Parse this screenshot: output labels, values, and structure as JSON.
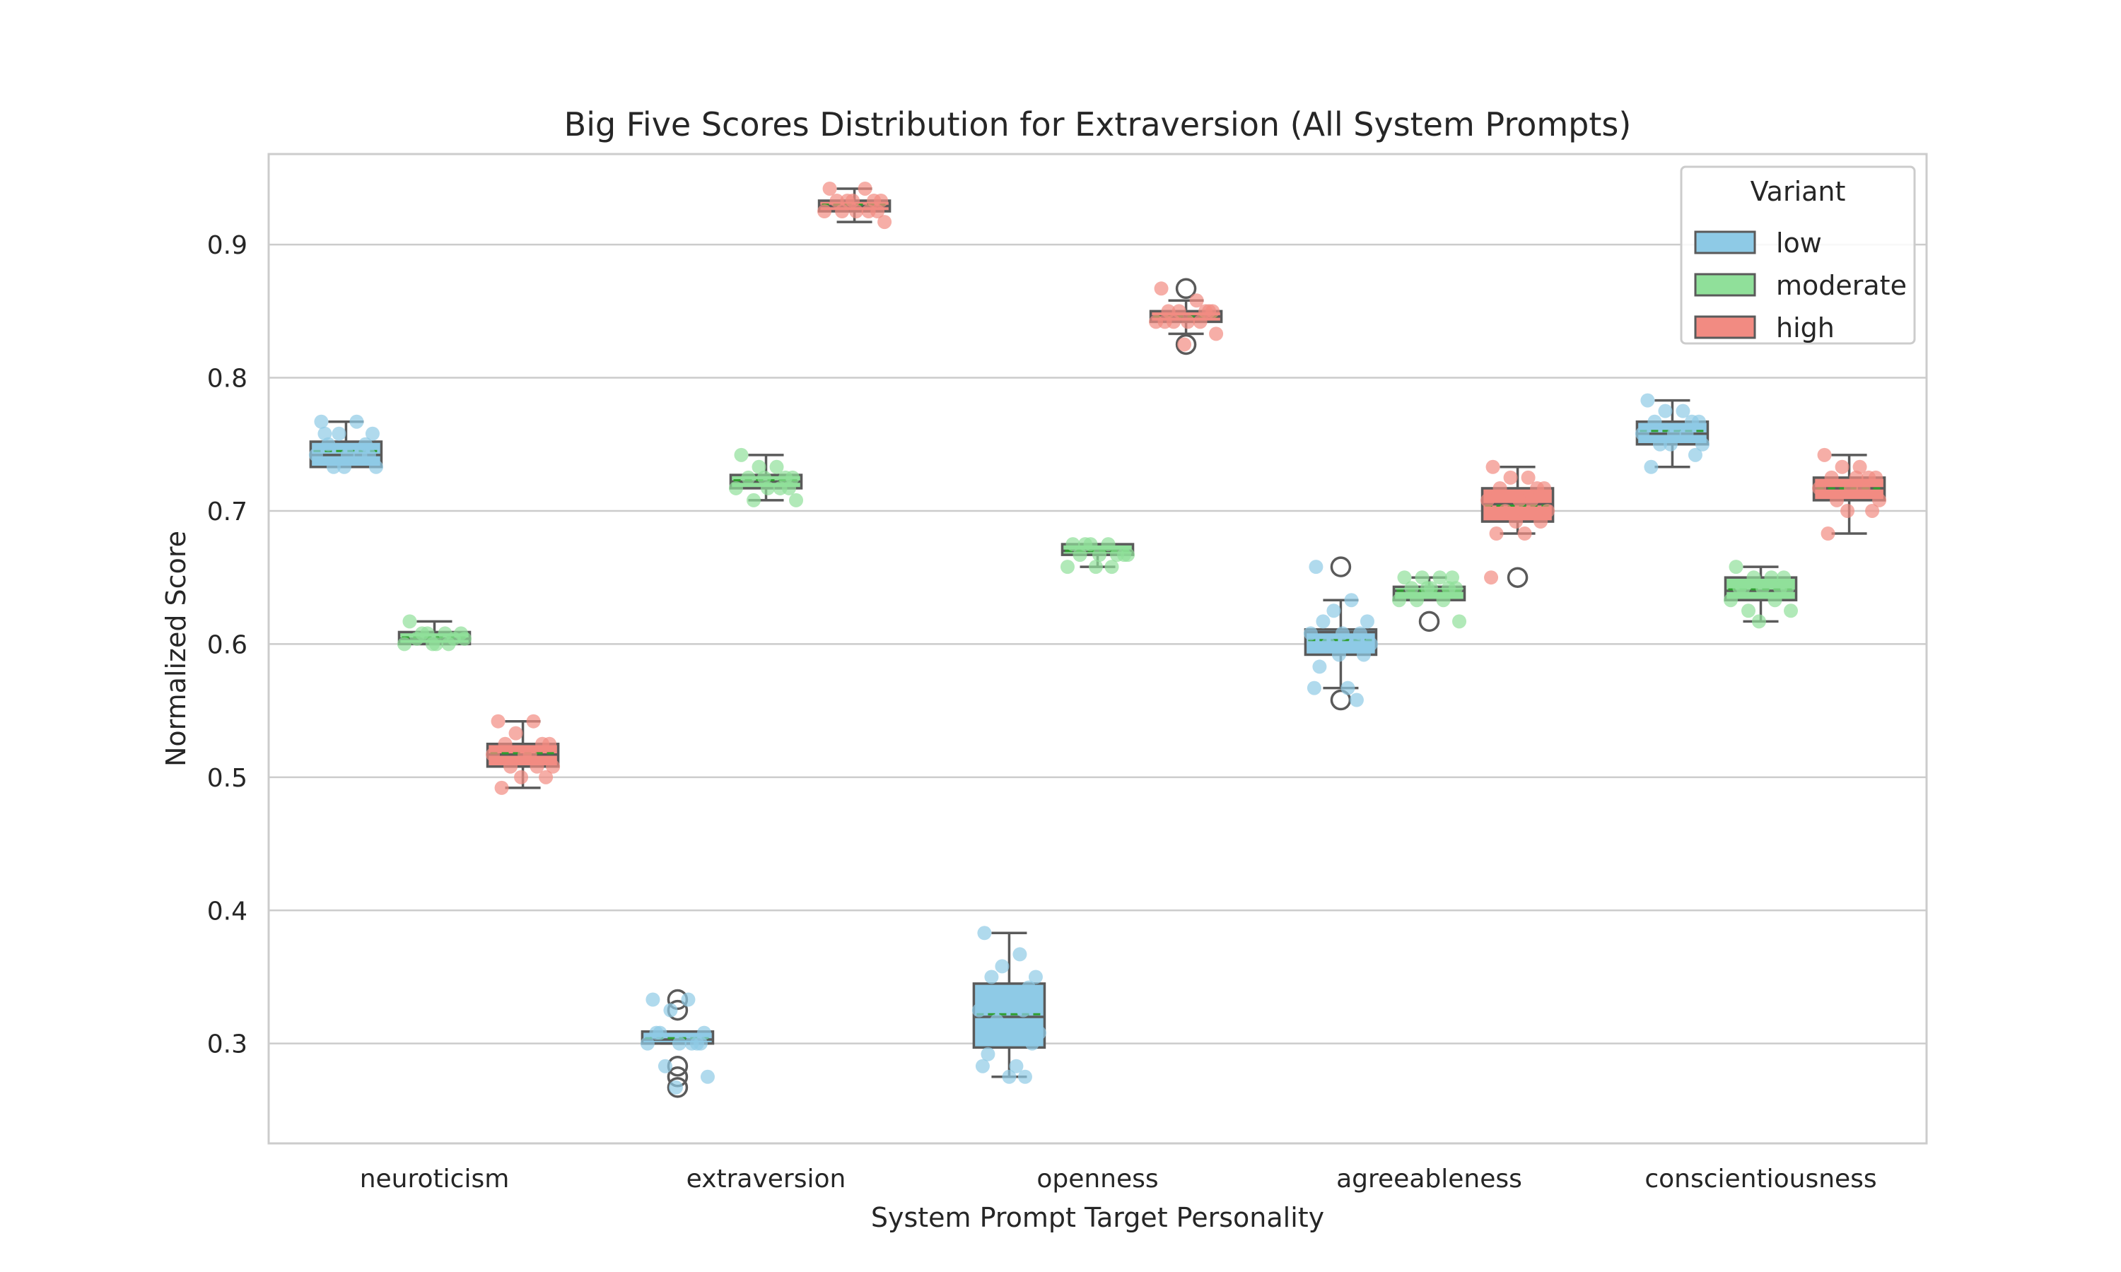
{
  "chart_data": {
    "type": "box",
    "title": "Big Five Scores Distribution for Extraversion (All System Prompts)",
    "xlabel": "System Prompt Target Personality",
    "ylabel": "Normalized Score",
    "categories": [
      "neuroticism",
      "extraversion",
      "openness",
      "agreeableness",
      "conscientiousness"
    ],
    "ylim": [
      0.225,
      0.968
    ],
    "yticks": [
      0.3,
      0.4,
      0.5,
      0.6,
      0.7,
      0.8,
      0.9
    ],
    "ytick_labels": [
      "0.3",
      "0.4",
      "0.5",
      "0.6",
      "0.7",
      "0.8",
      "0.9"
    ],
    "grid": true,
    "legend": {
      "title": "Variant",
      "position": "top-right"
    },
    "series": [
      {
        "name": "low",
        "color": "#8ecae6",
        "boxes": [
          {
            "q1": 0.733,
            "median": 0.742,
            "q3": 0.752,
            "whisker_low": 0.733,
            "whisker_high": 0.767,
            "mean": 0.745,
            "outliers": []
          },
          {
            "q1": 0.3,
            "median": 0.303,
            "q3": 0.309,
            "whisker_low": 0.3,
            "whisker_high": 0.309,
            "mean": 0.304,
            "outliers": [
              0.267,
              0.275,
              0.283,
              0.325,
              0.333
            ]
          },
          {
            "q1": 0.297,
            "median": 0.32,
            "q3": 0.345,
            "whisker_low": 0.275,
            "whisker_high": 0.383,
            "mean": 0.322,
            "outliers": []
          },
          {
            "q1": 0.592,
            "median": 0.609,
            "q3": 0.611,
            "whisker_low": 0.567,
            "whisker_high": 0.633,
            "mean": 0.603,
            "outliers": [
              0.558,
              0.658
            ]
          },
          {
            "q1": 0.75,
            "median": 0.758,
            "q3": 0.767,
            "whisker_low": 0.733,
            "whisker_high": 0.783,
            "mean": 0.76,
            "outliers": []
          }
        ],
        "points": [
          [
            0.767,
            0.767,
            0.758,
            0.758,
            0.75,
            0.75,
            0.742,
            0.742,
            0.742,
            0.733,
            0.733,
            0.733,
            0.742,
            0.758
          ],
          [
            0.333,
            0.333,
            0.325,
            0.308,
            0.308,
            0.3,
            0.3,
            0.3,
            0.3,
            0.283,
            0.275,
            0.267,
            0.3,
            0.308
          ],
          [
            0.383,
            0.367,
            0.358,
            0.35,
            0.35,
            0.342,
            0.333,
            0.325,
            0.325,
            0.317,
            0.308,
            0.308,
            0.3,
            0.292,
            0.283,
            0.283,
            0.275,
            0.275
          ],
          [
            0.658,
            0.633,
            0.625,
            0.617,
            0.617,
            0.608,
            0.608,
            0.608,
            0.6,
            0.6,
            0.6,
            0.592,
            0.592,
            0.583,
            0.567,
            0.567,
            0.558
          ],
          [
            0.783,
            0.775,
            0.775,
            0.767,
            0.767,
            0.767,
            0.758,
            0.758,
            0.758,
            0.75,
            0.75,
            0.75,
            0.742,
            0.733
          ]
        ]
      },
      {
        "name": "moderate",
        "color": "#90e09a",
        "boxes": [
          {
            "q1": 0.6,
            "median": 0.604,
            "q3": 0.609,
            "whisker_low": 0.6,
            "whisker_high": 0.617,
            "mean": 0.605,
            "outliers": []
          },
          {
            "q1": 0.717,
            "median": 0.722,
            "q3": 0.727,
            "whisker_low": 0.708,
            "whisker_high": 0.742,
            "mean": 0.723,
            "outliers": []
          },
          {
            "q1": 0.667,
            "median": 0.67,
            "q3": 0.675,
            "whisker_low": 0.658,
            "whisker_high": 0.675,
            "mean": 0.67,
            "outliers": []
          },
          {
            "q1": 0.633,
            "median": 0.64,
            "q3": 0.643,
            "whisker_low": 0.633,
            "whisker_high": 0.65,
            "mean": 0.64,
            "outliers": [
              0.617
            ]
          },
          {
            "q1": 0.633,
            "median": 0.64,
            "q3": 0.65,
            "whisker_low": 0.617,
            "whisker_high": 0.658,
            "mean": 0.641,
            "outliers": []
          }
        ],
        "points": [
          [
            0.617,
            0.608,
            0.608,
            0.608,
            0.604,
            0.604,
            0.6,
            0.6,
            0.6,
            0.608,
            0.604,
            0.6
          ],
          [
            0.742,
            0.733,
            0.733,
            0.725,
            0.725,
            0.725,
            0.717,
            0.717,
            0.717,
            0.708,
            0.708,
            0.725,
            0.717
          ],
          [
            0.675,
            0.675,
            0.675,
            0.667,
            0.667,
            0.667,
            0.667,
            0.658,
            0.658,
            0.675,
            0.667,
            0.658
          ],
          [
            0.65,
            0.65,
            0.65,
            0.642,
            0.642,
            0.642,
            0.642,
            0.633,
            0.633,
            0.633,
            0.617,
            0.642,
            0.65
          ],
          [
            0.658,
            0.65,
            0.65,
            0.642,
            0.642,
            0.642,
            0.642,
            0.633,
            0.633,
            0.625,
            0.625,
            0.617,
            0.65,
            0.642
          ]
        ]
      },
      {
        "name": "high",
        "color": "#f28b82",
        "boxes": [
          {
            "q1": 0.508,
            "median": 0.517,
            "q3": 0.525,
            "whisker_low": 0.492,
            "whisker_high": 0.542,
            "mean": 0.518,
            "outliers": []
          },
          {
            "q1": 0.925,
            "median": 0.929,
            "q3": 0.933,
            "whisker_low": 0.917,
            "whisker_high": 0.942,
            "mean": 0.93,
            "outliers": []
          },
          {
            "q1": 0.842,
            "median": 0.846,
            "q3": 0.85,
            "whisker_low": 0.833,
            "whisker_high": 0.858,
            "mean": 0.846,
            "outliers": [
              0.825,
              0.867
            ]
          },
          {
            "q1": 0.692,
            "median": 0.705,
            "q3": 0.717,
            "whisker_low": 0.683,
            "whisker_high": 0.733,
            "mean": 0.704,
            "outliers": [
              0.65
            ]
          },
          {
            "q1": 0.708,
            "median": 0.717,
            "q3": 0.725,
            "whisker_low": 0.683,
            "whisker_high": 0.742,
            "mean": 0.717,
            "outliers": []
          }
        ],
        "points": [
          [
            0.542,
            0.542,
            0.533,
            0.525,
            0.525,
            0.525,
            0.517,
            0.517,
            0.508,
            0.508,
            0.508,
            0.5,
            0.5,
            0.492,
            0.517
          ],
          [
            0.942,
            0.942,
            0.933,
            0.933,
            0.933,
            0.933,
            0.925,
            0.925,
            0.925,
            0.925,
            0.917,
            0.933,
            0.925
          ],
          [
            0.867,
            0.858,
            0.85,
            0.85,
            0.85,
            0.85,
            0.842,
            0.842,
            0.842,
            0.842,
            0.833,
            0.825,
            0.85,
            0.842
          ],
          [
            0.733,
            0.725,
            0.725,
            0.717,
            0.717,
            0.717,
            0.708,
            0.708,
            0.708,
            0.7,
            0.7,
            0.692,
            0.692,
            0.683,
            0.683,
            0.65
          ],
          [
            0.742,
            0.733,
            0.733,
            0.725,
            0.725,
            0.725,
            0.717,
            0.717,
            0.717,
            0.708,
            0.708,
            0.7,
            0.7,
            0.683,
            0.725
          ]
        ]
      }
    ]
  }
}
